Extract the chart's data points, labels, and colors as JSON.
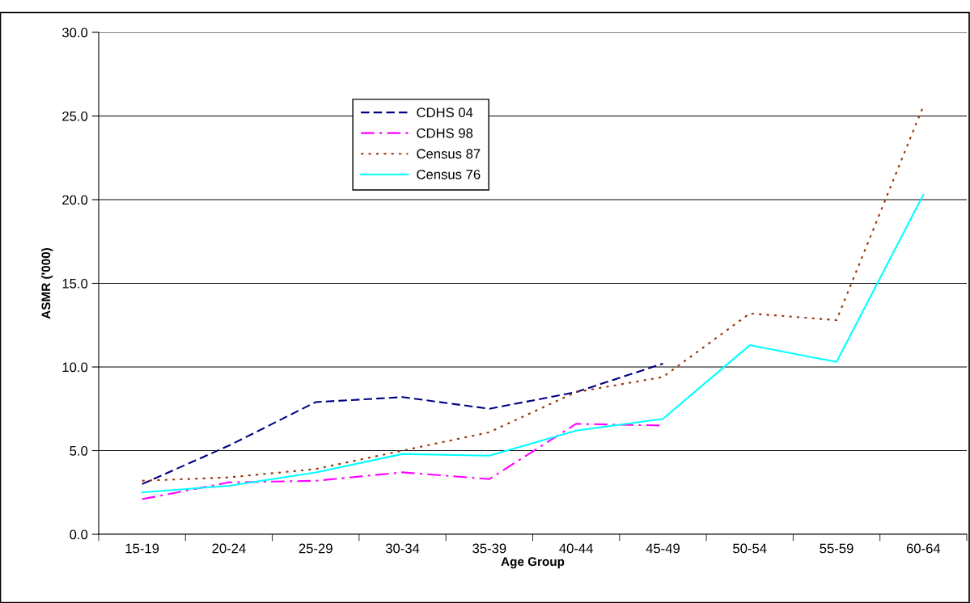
{
  "chart_data": {
    "type": "line",
    "xlabel": "Age Group",
    "ylabel": "ASMR ('000)",
    "categories": [
      "15-19",
      "20-24",
      "25-29",
      "30-34",
      "35-39",
      "40-44",
      "45-49",
      "50-54",
      "55-59",
      "60-64"
    ],
    "series": [
      {
        "name": "CDHS 04",
        "color": "#000080",
        "line_style": "dashed",
        "values": [
          3.0,
          5.3,
          7.9,
          8.2,
          7.5,
          8.5,
          10.2,
          null,
          null,
          null
        ]
      },
      {
        "name": "CDHS 98",
        "color": "#ff00ff",
        "line_style": "dashdot",
        "values": [
          2.1,
          3.1,
          3.2,
          3.7,
          3.3,
          6.6,
          6.5,
          null,
          null,
          null
        ]
      },
      {
        "name": "Census 87",
        "color": "#993300",
        "line_style": "dotted",
        "values": [
          3.2,
          3.4,
          3.9,
          5.0,
          6.1,
          8.5,
          9.4,
          13.2,
          12.8,
          25.6
        ]
      },
      {
        "name": "Census 76",
        "color": "#00ffff",
        "line_style": "solid",
        "values": [
          2.5,
          2.9,
          3.7,
          4.8,
          4.7,
          6.2,
          6.9,
          11.3,
          10.3,
          20.3
        ]
      }
    ],
    "ylim": [
      0,
      30
    ],
    "yticks": [
      {
        "value": 0,
        "label": "0.0"
      },
      {
        "value": 5,
        "label": "5.0"
      },
      {
        "value": 10,
        "label": "10.0"
      },
      {
        "value": 15,
        "label": "15.0"
      },
      {
        "value": 20,
        "label": "20.0"
      },
      {
        "value": 25,
        "label": "25.0"
      },
      {
        "value": 30,
        "label": "30.0"
      }
    ],
    "grid": "y",
    "legend": "top left",
    "marker": "none"
  }
}
